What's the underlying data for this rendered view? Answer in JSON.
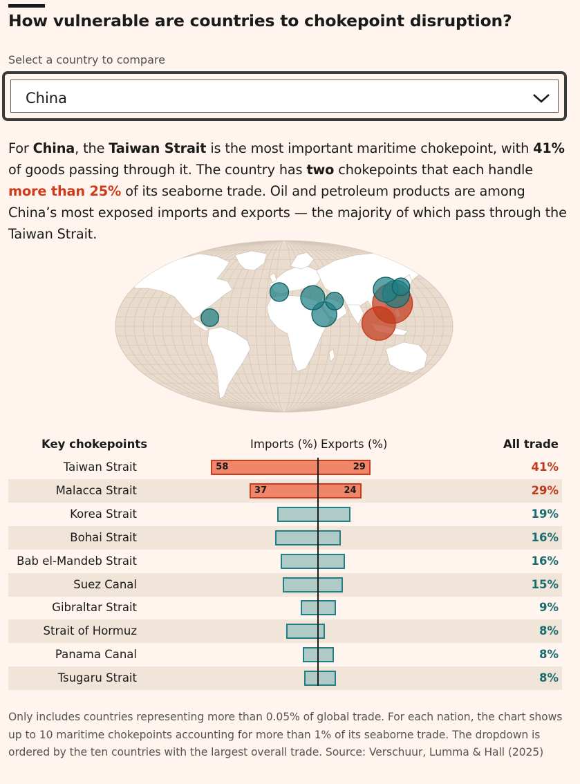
{
  "header": {
    "title": "How vulnerable are countries to chokepoint disruption?"
  },
  "selector": {
    "label": "Select a country to compare",
    "value": "China"
  },
  "intro": {
    "p1": "For ",
    "country": "China",
    "p2": ", the ",
    "strait": "Taiwan Strait",
    "p3": " is the most important maritime chokepoint, with ",
    "share": "41%",
    "p4": " of goods passing through it. The country has ",
    "count": "two",
    "p5": " chokepoints that each handle ",
    "highlight": "more than 25%",
    "p6": " of its seaborne trade. Oil and petroleum products are among China’s most exposed imports and exports — the majority of which pass through the Taiwan Strait."
  },
  "colors": {
    "high_fill": "#ef8569",
    "high_stroke": "#cc3b1c",
    "high_text": "#c13a1c",
    "low_fill": "#b0cbc7",
    "low_stroke": "#1f7f85",
    "low_text": "#1a6d70",
    "map_land": "#ffffff",
    "map_sea": "#e9dcce",
    "map_grid": "#d6c7b7"
  },
  "table": {
    "col_key": "Key chokepoints",
    "col_imports": "Imports (%)",
    "col_exports": "Exports (%)",
    "col_all": "All trade"
  },
  "chart_data": {
    "type": "bar",
    "categories": [
      "Taiwan Strait",
      "Malacca Strait",
      "Korea Strait",
      "Bohai Strait",
      "Bab el-Mandeb Strait",
      "Suez Canal",
      "Gibraltar Strait",
      "Strait of Hormuz",
      "Panama Canal",
      "Tsugaru Strait"
    ],
    "series": [
      {
        "name": "Imports (%)",
        "values": [
          58,
          37,
          22,
          23,
          20,
          19,
          9,
          17,
          8,
          7
        ]
      },
      {
        "name": "Exports (%)",
        "values": [
          29,
          24,
          18,
          13,
          15,
          14,
          10,
          4,
          9,
          10
        ]
      }
    ],
    "all_trade": [
      41,
      29,
      19,
      16,
      16,
      15,
      9,
      8,
      8,
      8
    ],
    "all_trade_labels": [
      "41%",
      "29%",
      "19%",
      "16%",
      "16%",
      "15%",
      "9%",
      "8%",
      "8%",
      "8%"
    ],
    "import_labels": [
      "58",
      "37",
      "",
      "",
      "",
      "",
      "",
      "",
      "",
      ""
    ],
    "export_labels": [
      "29",
      "24",
      "",
      "",
      "",
      "",
      "",
      "",
      "",
      ""
    ],
    "highlight_threshold": 25,
    "map_bubbles": [
      {
        "lon": 120,
        "lat": 24,
        "value": 41
      },
      {
        "lon": 101,
        "lat": 3,
        "value": 29
      },
      {
        "lon": 129,
        "lat": 34,
        "value": 19
      },
      {
        "lon": 120,
        "lat": 38.5,
        "value": 16
      },
      {
        "lon": 43.3,
        "lat": 12.6,
        "value": 16
      },
      {
        "lon": 32.4,
        "lat": 30,
        "value": 15
      },
      {
        "lon": -5.6,
        "lat": 36,
        "value": 9
      },
      {
        "lon": 56.3,
        "lat": 26.5,
        "value": 8
      },
      {
        "lon": -79.6,
        "lat": 9.1,
        "value": 8
      },
      {
        "lon": 140.5,
        "lat": 41.5,
        "value": 8
      }
    ]
  },
  "footnote": "Only includes countries representing more than 0.05% of global trade. For each nation, the chart shows up to 10 maritime chokepoints accounting for more than 1% of its seaborne trade. The dropdown is ordered by the ten countries with the largest overall trade. Source: Verschuur, Lumma & Hall (2025)"
}
